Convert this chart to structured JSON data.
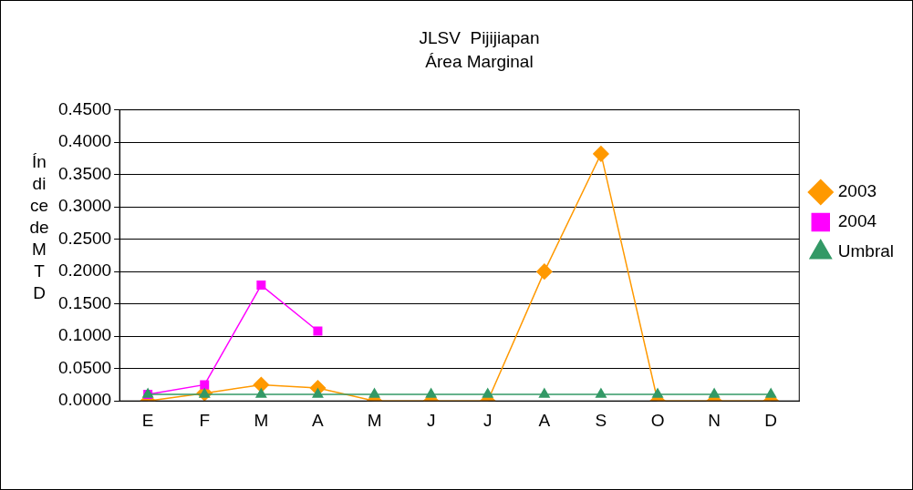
{
  "chart_data": {
    "type": "line",
    "title": "JLSV  Pijijiapan",
    "subtitle": "Área Marginal",
    "ylabel": "Índice de MTD",
    "categories": [
      "E",
      "F",
      "M",
      "A",
      "M",
      "J",
      "J",
      "A",
      "S",
      "O",
      "N",
      "D"
    ],
    "series": [
      {
        "name": "2003",
        "color": "#ff9900",
        "marker": "diamond",
        "values": [
          0,
          0.012,
          0.025,
          0.02,
          0,
          0,
          0,
          0.2,
          0.382,
          0,
          0,
          0
        ]
      },
      {
        "name": "2004",
        "color": "#ff00ff",
        "marker": "square",
        "values": [
          0.01,
          0.025,
          0.179,
          0.108,
          null,
          null,
          null,
          null,
          null,
          null,
          null,
          null
        ]
      },
      {
        "name": "Umbral",
        "color": "#339966",
        "marker": "triangle",
        "values": [
          0.01,
          0.01,
          0.01,
          0.01,
          0.01,
          0.01,
          0.01,
          0.01,
          0.01,
          0.01,
          0.01,
          0.01
        ]
      }
    ],
    "ylim": [
      0,
      0.45
    ],
    "yticks": [
      {
        "value": 0,
        "label": "0.0000"
      },
      {
        "value": 0.05,
        "label": "0.0500"
      },
      {
        "value": 0.1,
        "label": "0.1000"
      },
      {
        "value": 0.15,
        "label": "0.1500"
      },
      {
        "value": 0.2,
        "label": "0.2000"
      },
      {
        "value": 0.25,
        "label": "0.2500"
      },
      {
        "value": 0.3,
        "label": "0.3000"
      },
      {
        "value": 0.35,
        "label": "0.3500"
      },
      {
        "value": 0.4,
        "label": "0.4000"
      },
      {
        "value": 0.45,
        "label": "0.4500"
      }
    ],
    "grid": "y",
    "legend": "right"
  }
}
